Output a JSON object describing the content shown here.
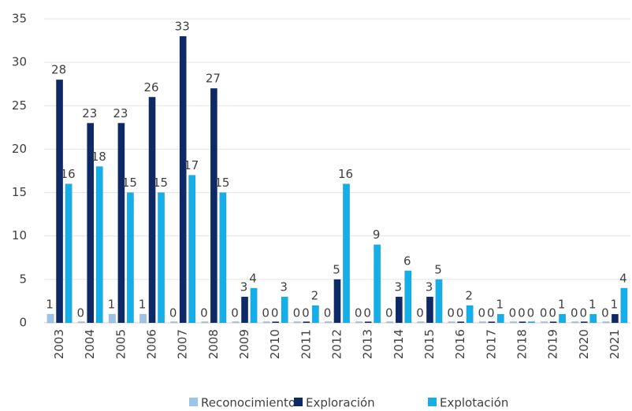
{
  "chart_data": {
    "type": "bar",
    "categories": [
      "2003",
      "2004",
      "2005",
      "2006",
      "2007",
      "2008",
      "2009",
      "2010",
      "2011",
      "2012",
      "2013",
      "2014",
      "2015",
      "2016",
      "2017",
      "2018",
      "2019",
      "2020",
      "2021"
    ],
    "series": [
      {
        "name": "Reconocimiento",
        "color": "#9dc3e6",
        "values": [
          1,
          0,
          1,
          1,
          0,
          0,
          0,
          0,
          0,
          0,
          0,
          0,
          0,
          0,
          0,
          0,
          0,
          0,
          0
        ]
      },
      {
        "name": "Exploración",
        "color": "#0e2a66",
        "values": [
          28,
          23,
          23,
          26,
          33,
          27,
          3,
          0,
          0,
          5,
          0,
          3,
          3,
          0,
          0,
          0,
          0,
          0,
          1
        ]
      },
      {
        "name": "Explotación",
        "color": "#14aee8",
        "values": [
          16,
          18,
          15,
          15,
          17,
          15,
          4,
          3,
          2,
          16,
          9,
          6,
          5,
          2,
          1,
          0,
          1,
          1,
          4
        ]
      }
    ],
    "ylim": [
      0,
      35
    ],
    "yticks": [
      0,
      5,
      10,
      15,
      20,
      25,
      30,
      35
    ],
    "grid": true,
    "legend": "bottom"
  }
}
